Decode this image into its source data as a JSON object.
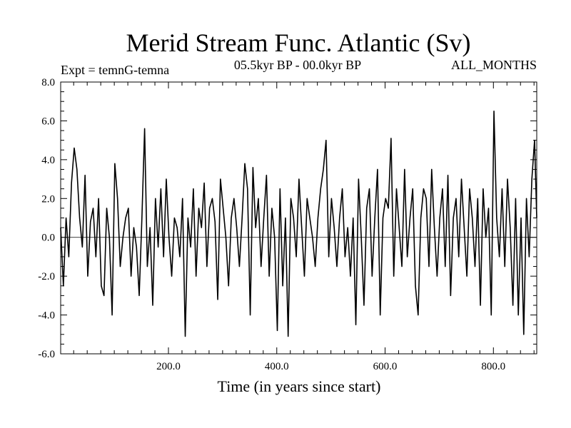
{
  "chart_data": {
    "type": "line",
    "title": "Merid Stream Func. Atlantic (Sv)",
    "subtitle_left": "Expt = temnG-temna",
    "subtitle_center": "05.5kyr BP - 00.0kyr BP",
    "subtitle_right": "ALL_MONTHS",
    "xlabel": "Time (in years since start)",
    "ylabel": "",
    "xlim": [
      1,
      880
    ],
    "ylim": [
      -6,
      8
    ],
    "x_ticks": [
      200,
      400,
      600,
      800
    ],
    "x_tick_labels": [
      "200.0",
      "400.0",
      "600.0",
      "800.0"
    ],
    "y_ticks": [
      -6,
      -4,
      -2,
      0,
      2,
      4,
      6,
      8
    ],
    "y_tick_labels": [
      "-6.0",
      "-4.0",
      "-2.0",
      "0.0",
      "2.0",
      "4.0",
      "6.0",
      "8.0"
    ],
    "zero_line": 0,
    "series": [
      {
        "name": "temnG-temna",
        "x_start": 1,
        "x_step": 5,
        "values": [
          0.5,
          -2.5,
          1.0,
          -1.0,
          2.8,
          4.6,
          3.5,
          1.0,
          -0.5,
          3.2,
          -2.0,
          0.8,
          1.5,
          -1.0,
          2.0,
          -2.5,
          -3.0,
          1.5,
          0.0,
          -4.0,
          3.8,
          2.0,
          -1.5,
          0.0,
          1.0,
          1.5,
          -2.0,
          0.5,
          -0.5,
          -3.0,
          1.0,
          5.6,
          -1.5,
          0.5,
          -3.5,
          2.0,
          -0.5,
          2.5,
          -1.0,
          3.0,
          0.0,
          -2.0,
          1.0,
          0.5,
          -1.0,
          2.0,
          -5.1,
          1.0,
          -0.5,
          2.5,
          -2.0,
          1.5,
          0.5,
          2.8,
          -1.5,
          1.5,
          2.0,
          0.8,
          -3.2,
          3.0,
          1.5,
          0.0,
          -2.5,
          1.0,
          2.0,
          0.5,
          -1.5,
          1.0,
          3.8,
          2.5,
          -4.0,
          3.6,
          0.5,
          2.0,
          -1.5,
          1.0,
          3.2,
          -2.0,
          1.5,
          0.0,
          -4.8,
          2.5,
          -2.5,
          1.0,
          -5.1,
          2.0,
          1.0,
          -1.0,
          3.0,
          0.5,
          -2.0,
          2.0,
          1.0,
          0.0,
          -1.5,
          1.0,
          2.5,
          3.5,
          5.0,
          -1.0,
          2.0,
          0.5,
          -1.5,
          1.0,
          2.5,
          -1.0,
          0.5,
          -2.0,
          1.0,
          -4.5,
          3.0,
          0.0,
          -3.5,
          1.5,
          2.5,
          -2.0,
          1.0,
          3.5,
          -4.0,
          1.0,
          2.0,
          1.5,
          5.1,
          -2.0,
          2.5,
          0.5,
          -1.5,
          3.5,
          -1.0,
          1.0,
          2.5,
          -2.5,
          -4.0,
          1.0,
          2.5,
          2.0,
          -1.5,
          3.5,
          0.5,
          -2.0,
          1.0,
          2.5,
          -1.5,
          3.2,
          -3.0,
          1.0,
          2.0,
          -1.0,
          3.0,
          0.5,
          -2.0,
          2.5,
          1.0,
          -1.5,
          2.0,
          -3.5,
          2.5,
          0.0,
          1.5,
          -4.0,
          6.5,
          1.0,
          -1.0,
          2.5,
          -1.5,
          3.0,
          0.5,
          -3.5,
          2.0,
          -4.0,
          1.0,
          -5.0,
          2.0,
          -1.0,
          3.0,
          5.0,
          1.0
        ]
      }
    ]
  }
}
